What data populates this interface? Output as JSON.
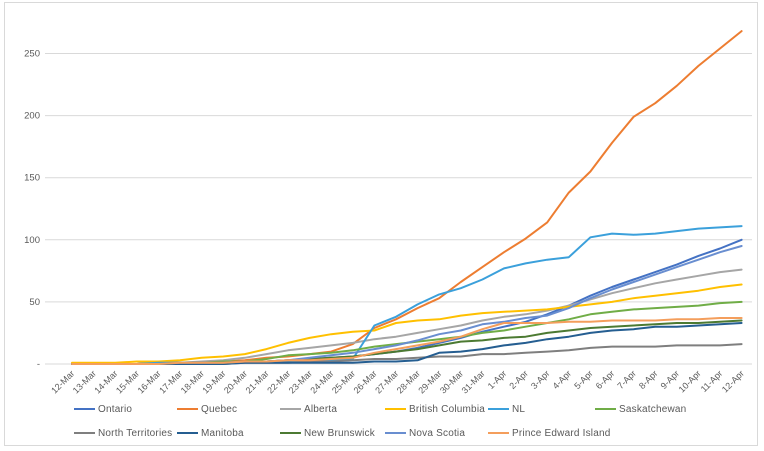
{
  "chart_data": {
    "type": "line",
    "title": "",
    "xlabel": "",
    "ylabel": "",
    "ylim": [
      0,
      280
    ],
    "grid": true,
    "legend_position": "bottom",
    "yticks": {
      "values": [
        0,
        50,
        100,
        150,
        200,
        250
      ],
      "labels": [
        "-",
        "50",
        "100",
        "150",
        "200",
        "250"
      ]
    },
    "categories": [
      "12-Mar",
      "13-Mar",
      "14-Mar",
      "15-Mar",
      "16-Mar",
      "17-Mar",
      "18-Mar",
      "19-Mar",
      "20-Mar",
      "21-Mar",
      "22-Mar",
      "23-Mar",
      "24-Mar",
      "25-Mar",
      "26-Mar",
      "27-Mar",
      "28-Mar",
      "29-Mar",
      "30-Mar",
      "31-Mar",
      "1-Apr",
      "2-Apr",
      "3-Apr",
      "4-Apr",
      "5-Apr",
      "6-Apr",
      "7-Apr",
      "8-Apr",
      "9-Apr",
      "10-Apr",
      "11-Apr",
      "12-Apr"
    ],
    "series": [
      {
        "name": "Ontario",
        "color": "#4472C4",
        "values": [
          0,
          0,
          0,
          0,
          1,
          1,
          1,
          1,
          2,
          2,
          3,
          4,
          5,
          6,
          8,
          10,
          13,
          17,
          21,
          26,
          30,
          34,
          40,
          47,
          55,
          62,
          68,
          74,
          80,
          87,
          93,
          100
        ]
      },
      {
        "name": "Quebec",
        "color": "#ED7D31",
        "values": [
          0,
          0,
          0,
          0,
          1,
          1,
          1,
          2,
          3,
          5,
          6,
          8,
          10,
          16,
          29,
          36,
          45,
          53,
          66,
          78,
          90,
          101,
          114,
          138,
          155,
          178,
          199,
          210,
          224,
          240,
          254,
          268
        ]
      },
      {
        "name": "Alberta",
        "color": "#A6A6A6",
        "values": [
          0,
          0,
          0,
          0,
          1,
          1,
          2,
          3,
          5,
          8,
          11,
          13,
          15,
          17,
          20,
          22,
          25,
          28,
          31,
          35,
          38,
          40,
          43,
          47,
          52,
          57,
          61,
          65,
          68,
          71,
          74,
          76
        ]
      },
      {
        "name": "British Columbia",
        "color": "#FFC000",
        "values": [
          1,
          1,
          1,
          2,
          2,
          3,
          5,
          6,
          8,
          12,
          17,
          21,
          24,
          26,
          27,
          33,
          35,
          36,
          39,
          41,
          42,
          43,
          44,
          46,
          48,
          50,
          53,
          55,
          57,
          59,
          62,
          64
        ]
      },
      {
        "name": "NL",
        "color": "#3BA0DB",
        "values": [
          0,
          0,
          0,
          0,
          1,
          1,
          1,
          1,
          2,
          2,
          2,
          3,
          3,
          4,
          31,
          38,
          48,
          56,
          61,
          68,
          77,
          81,
          84,
          86,
          102,
          105,
          104,
          105,
          107,
          109,
          110,
          111
        ]
      },
      {
        "name": "Saskatchewan",
        "color": "#70AD47",
        "values": [
          0,
          0,
          0,
          0,
          0,
          1,
          1,
          2,
          2,
          4,
          7,
          8,
          9,
          11,
          14,
          16,
          18,
          20,
          22,
          25,
          27,
          30,
          33,
          36,
          40,
          42,
          44,
          45,
          46,
          47,
          49,
          50
        ]
      },
      {
        "name": "North Territories",
        "color": "#7F7F7F",
        "values": [
          0,
          0,
          0,
          0,
          0,
          0,
          0,
          0,
          1,
          1,
          1,
          2,
          2,
          3,
          4,
          4,
          5,
          6,
          6,
          8,
          8,
          9,
          10,
          11,
          13,
          14,
          14,
          14,
          15,
          15,
          15,
          16
        ]
      },
      {
        "name": "Manitoba",
        "color": "#255E91",
        "values": [
          0,
          0,
          0,
          0,
          0,
          0,
          0,
          0,
          1,
          1,
          1,
          1,
          1,
          1,
          2,
          2,
          3,
          9,
          10,
          12,
          15,
          17,
          20,
          22,
          25,
          27,
          28,
          30,
          30,
          31,
          32,
          33
        ]
      },
      {
        "name": "New Brunswick",
        "color": "#4C7A32",
        "values": [
          0,
          0,
          0,
          0,
          0,
          1,
          1,
          1,
          2,
          2,
          3,
          4,
          5,
          6,
          8,
          10,
          12,
          15,
          18,
          19,
          21,
          22,
          25,
          27,
          29,
          30,
          31,
          32,
          33,
          33,
          34,
          35
        ]
      },
      {
        "name": "Nova Scotia",
        "color": "#698ED0",
        "values": [
          0,
          0,
          0,
          0,
          0,
          1,
          1,
          1,
          2,
          2,
          3,
          5,
          7,
          9,
          12,
          15,
          19,
          24,
          27,
          32,
          34,
          37,
          39,
          45,
          53,
          60,
          66,
          72,
          78,
          84,
          90,
          95
        ]
      },
      {
        "name": "Prince Edward Island",
        "color": "#F49E5C",
        "values": [
          0,
          0,
          0,
          0,
          0,
          1,
          1,
          1,
          2,
          2,
          3,
          3,
          4,
          5,
          9,
          12,
          15,
          18,
          22,
          28,
          33,
          33,
          33,
          34,
          34,
          35,
          35,
          35,
          36,
          36,
          37,
          37
        ]
      }
    ],
    "legend_rows": [
      [
        "Ontario",
        "Quebec",
        "Alberta",
        "British Columbia",
        "NL",
        "Saskatchewan"
      ],
      [
        "North Territories",
        "Manitoba",
        "New Brunswick",
        "Nova Scotia",
        "Prince Edward Island"
      ]
    ]
  }
}
